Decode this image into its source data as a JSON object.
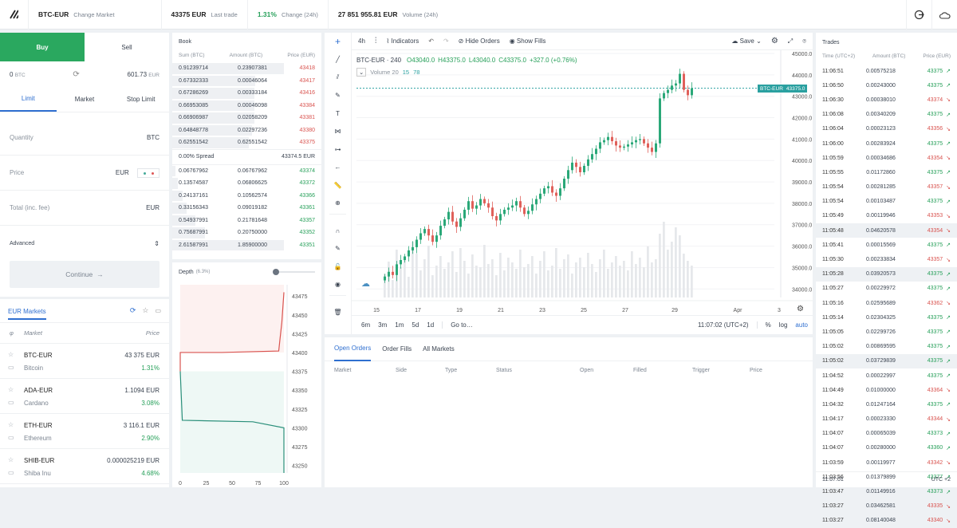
{
  "topbar": {
    "pair": "BTC-EUR",
    "change_market": "Change Market",
    "last_price": "43375 EUR",
    "last_trade_label": "Last trade",
    "change_pct": "1.31%",
    "change_label": "Change (24h)",
    "volume": "27 851 955.81 EUR",
    "volume_label": "Volume (24h)"
  },
  "order": {
    "buy": "Buy",
    "sell": "Sell",
    "bal_btc": "0",
    "bal_btc_unit": "BTC",
    "bal_eur": "601.73",
    "bal_eur_unit": "EUR",
    "tabs": [
      "Limit",
      "Market",
      "Stop Limit"
    ],
    "quantity": "Quantity",
    "quantity_unit": "BTC",
    "price": "Price",
    "price_unit": "EUR",
    "total": "Total (inc. fee)",
    "total_unit": "EUR",
    "advanced": "Advanced",
    "continue": "Continue"
  },
  "markets": {
    "title": "EUR Markets",
    "col_market": "Market",
    "col_price": "Price",
    "rows": [
      {
        "sym": "BTC-EUR",
        "price": "43 375 EUR",
        "name": "Bitcoin",
        "change": "1.31%"
      },
      {
        "sym": "ADA-EUR",
        "price": "1.1094 EUR",
        "name": "Cardano",
        "change": "3.08%"
      },
      {
        "sym": "ETH-EUR",
        "price": "3 116.1 EUR",
        "name": "Ethereum",
        "change": "2.90%"
      },
      {
        "sym": "SHIB-EUR",
        "price": "0.000025219 EUR",
        "name": "Shiba Inu",
        "change": "4.68%"
      }
    ]
  },
  "book": {
    "title": "Book",
    "col_sum": "Sum (BTC)",
    "col_amount": "Amount (BTC)",
    "col_price": "Price (EUR)",
    "asks": [
      [
        "0.91239714",
        "0.23907381",
        "43418"
      ],
      [
        "0.67332333",
        "0.00046064",
        "43417"
      ],
      [
        "0.67286269",
        "0.00333184",
        "43416"
      ],
      [
        "0.66953085",
        "0.00046098",
        "43384"
      ],
      [
        "0.66906987",
        "0.02058209",
        "43381"
      ],
      [
        "0.64848778",
        "0.02297236",
        "43380"
      ],
      [
        "0.62551542",
        "0.62551542",
        "43375"
      ]
    ],
    "spread_label": "0.00% Spread",
    "spread_value": "43374.5 EUR",
    "bids": [
      [
        "0.06767962",
        "0.06767962",
        "43374"
      ],
      [
        "0.13574587",
        "0.06806625",
        "43372"
      ],
      [
        "0.24137161",
        "0.10562574",
        "43366"
      ],
      [
        "0.33156343",
        "0.09019182",
        "43361"
      ],
      [
        "0.54937991",
        "0.21781648",
        "43357"
      ],
      [
        "0.75687991",
        "0.20750000",
        "43352"
      ],
      [
        "2.61587991",
        "1.85900000",
        "43351"
      ]
    ]
  },
  "depth": {
    "title": "Depth",
    "pct": "(6.3%)",
    "y_ticks": [
      "43475",
      "43450",
      "43425",
      "43400",
      "43375",
      "43350",
      "43325",
      "43300",
      "43275",
      "43250"
    ],
    "x_ticks": [
      "0",
      "25",
      "50",
      "75",
      "100"
    ]
  },
  "chart": {
    "interval": "4h",
    "indicators": "Indicators",
    "hide_orders": "Hide Orders",
    "show_fills": "Show Fills",
    "save": "Save",
    "symbol": "BTC-EUR · 240",
    "o": "O43040.0",
    "h": "H43375.0",
    "l": "L43040.0",
    "c": "C43375.0",
    "chg": "+327.0 (+0.76%)",
    "volume": "Volume 20",
    "vol_a": "15",
    "vol_b": "78",
    "last_tag": "BTC-EUR",
    "last_price": "43375.0",
    "y_ticks": [
      "45000.0",
      "44000.0",
      "43000.0",
      "42000.0",
      "41000.0",
      "40000.0",
      "39000.0",
      "38000.0",
      "37000.0",
      "36000.0",
      "35000.0",
      "34000.0"
    ],
    "x_ticks": [
      "15",
      "17",
      "19",
      "21",
      "23",
      "25",
      "27",
      "29",
      "Apr",
      "3"
    ],
    "ranges": [
      "6m",
      "3m",
      "1m",
      "5d",
      "1d"
    ],
    "goto": "Go to…",
    "clock": "11:07:02 (UTC+2)",
    "pct": "%",
    "log": "log",
    "auto": "auto",
    "closes": [
      34580,
      34800,
      34650,
      35150,
      35350,
      35520,
      35800,
      35950,
      36300,
      36600,
      36800,
      36500,
      36200,
      36500,
      36950,
      37250,
      37600,
      37150,
      36900,
      37300,
      37700,
      38100,
      37750,
      37900,
      38200,
      38000,
      37800,
      37400,
      37200,
      37500,
      37700,
      37800,
      37900,
      38100,
      37800,
      37500,
      37650,
      37950,
      38200,
      38450,
      38700,
      38800,
      38500,
      38350,
      38700,
      39150,
      39550,
      39900,
      39700,
      39450,
      39750,
      40050,
      40300,
      40550,
      40850,
      40950,
      41100,
      40900,
      40700,
      40600,
      40650,
      40750,
      40850,
      40950,
      41000,
      40800,
      40600,
      40400,
      40800,
      42900,
      43150,
      43300,
      43500,
      43600,
      44050,
      43300,
      43050,
      43375
    ],
    "vol_bars": [
      30,
      45,
      22,
      60,
      38,
      50,
      26,
      70,
      55,
      34,
      48,
      65,
      28,
      40,
      52,
      36,
      44,
      58,
      32,
      62,
      46,
      30,
      54,
      40,
      38,
      66,
      42,
      48,
      28,
      56,
      34,
      50,
      44,
      36,
      60,
      38,
      42,
      52,
      30,
      46,
      58,
      34,
      40,
      62,
      36,
      48,
      54,
      30,
      44,
      50,
      38,
      56,
      42,
      32,
      48,
      60,
      36,
      44,
      52,
      40,
      46,
      34,
      58,
      42,
      50,
      38,
      64,
      44,
      48,
      80,
      95,
      60,
      70,
      88,
      78,
      55,
      46,
      40
    ]
  },
  "orders": {
    "tabs": [
      "Open Orders",
      "Order Fills",
      "All Markets"
    ],
    "cols": [
      "Market",
      "Side",
      "Type",
      "Status",
      "Open",
      "Filled",
      "Trigger",
      "Price"
    ]
  },
  "trades": {
    "title": "Trades",
    "col_time": "Time (UTC+2)",
    "col_amount": "Amount (BTC)",
    "col_price": "Price (EUR)",
    "footer_time": "11:07:01",
    "footer_tz": "UTC +2",
    "rows": [
      [
        "11:06:51",
        "0.00575218",
        "43375",
        "up"
      ],
      [
        "11:06:50",
        "0.00243000",
        "43375",
        "up"
      ],
      [
        "11:06:30",
        "0.00038010",
        "43374",
        "down"
      ],
      [
        "11:06:08",
        "0.00340209",
        "43375",
        "up"
      ],
      [
        "11:06:04",
        "0.00023123",
        "43356",
        "down"
      ],
      [
        "11:06:00",
        "0.00283924",
        "43375",
        "up"
      ],
      [
        "11:05:59",
        "0.00034686",
        "43354",
        "down"
      ],
      [
        "11:05:55",
        "0.01172860",
        "43375",
        "up"
      ],
      [
        "11:05:54",
        "0.00281285",
        "43357",
        "down"
      ],
      [
        "11:05:54",
        "0.00103487",
        "43375",
        "up"
      ],
      [
        "11:05:49",
        "0.00119946",
        "43353",
        "down"
      ],
      [
        "11:05:48",
        "0.04620578",
        "43354",
        "down"
      ],
      [
        "11:05:41",
        "0.00015569",
        "43375",
        "up"
      ],
      [
        "11:05:30",
        "0.00233834",
        "43357",
        "down"
      ],
      [
        "11:05:28",
        "0.03920573",
        "43375",
        "up"
      ],
      [
        "11:05:27",
        "0.00229972",
        "43375",
        "up"
      ],
      [
        "11:05:16",
        "0.02595689",
        "43362",
        "down"
      ],
      [
        "11:05:14",
        "0.02304325",
        "43375",
        "up"
      ],
      [
        "11:05:05",
        "0.02299726",
        "43375",
        "up"
      ],
      [
        "11:05:02",
        "0.00869595",
        "43375",
        "up"
      ],
      [
        "11:05:02",
        "0.03729839",
        "43375",
        "up"
      ],
      [
        "11:04:52",
        "0.00022997",
        "43375",
        "up"
      ],
      [
        "11:04:49",
        "0.01000000",
        "43364",
        "down"
      ],
      [
        "11:04:32",
        "0.01247164",
        "43375",
        "up"
      ],
      [
        "11:04:17",
        "0.00023330",
        "43344",
        "down"
      ],
      [
        "11:04:07",
        "0.00065039",
        "43373",
        "up"
      ],
      [
        "11:04:07",
        "0.00280000",
        "43360",
        "up"
      ],
      [
        "11:03:59",
        "0.00119977",
        "43342",
        "down"
      ],
      [
        "11:03:56",
        "0.01379899",
        "43377",
        "up"
      ],
      [
        "11:03:47",
        "0.01149916",
        "43373",
        "up"
      ],
      [
        "11:03:27",
        "0.03462581",
        "43335",
        "down"
      ],
      [
        "11:03:27",
        "0.08140048",
        "43340",
        "down"
      ]
    ]
  }
}
